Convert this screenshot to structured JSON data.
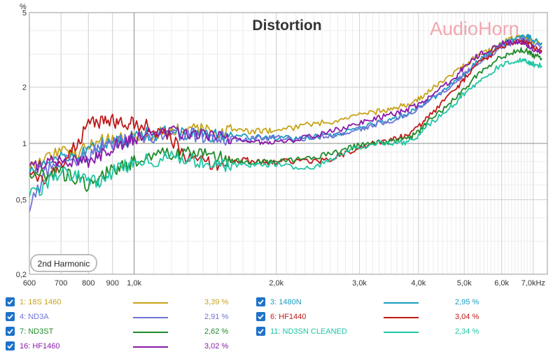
{
  "chart_data": {
    "type": "line",
    "title": "Distortion",
    "watermark": {
      "part1": "Audio",
      "part2": "Horn",
      "color1": "#f2a7ae",
      "color2": "#f2a7ae"
    },
    "badge": "2nd Harmonic",
    "y_unit": "%",
    "x_unit": "kHz",
    "x_scale": "log",
    "y_scale": "log",
    "xlim": [
      600,
      7500
    ],
    "ylim": [
      0.2,
      5
    ],
    "grid": true,
    "legend_placement": "bottom",
    "x_ticks": [
      {
        "v": 600,
        "label": "600"
      },
      {
        "v": 700,
        "label": "700"
      },
      {
        "v": 800,
        "label": "800"
      },
      {
        "v": 900,
        "label": "900"
      },
      {
        "v": 1000,
        "label": "1,0k"
      },
      {
        "v": 2000,
        "label": "2,0k"
      },
      {
        "v": 3000,
        "label": "3,0k"
      },
      {
        "v": 4000,
        "label": "4,0k"
      },
      {
        "v": 5000,
        "label": "5,0k"
      },
      {
        "v": 6000,
        "label": "6,0k"
      },
      {
        "v": 7000,
        "label": "7,0kHz"
      }
    ],
    "y_ticks": [
      {
        "v": 0.2,
        "label": "0,2"
      },
      {
        "v": 0.5,
        "label": "0,5"
      },
      {
        "v": 1,
        "label": "1"
      },
      {
        "v": 2,
        "label": "2"
      },
      {
        "v": 5,
        "label": "5"
      }
    ],
    "series": [
      {
        "name": "1: 18S 1460",
        "value_label": "3,39 %",
        "color": "#c8a317",
        "x": [
          600,
          650,
          700,
          750,
          800,
          850,
          900,
          950,
          1000,
          1100,
          1200,
          1300,
          1400,
          1500,
          1600,
          1700,
          1800,
          1900,
          2000,
          2200,
          2400,
          2600,
          2800,
          3000,
          3200,
          3400,
          3600,
          3800,
          4000,
          4200,
          4500,
          4800,
          5000,
          5300,
          5600,
          6000,
          6300,
          6600,
          6800,
          7000,
          7300
        ],
        "y": [
          0.74,
          0.85,
          0.92,
          0.88,
          0.95,
          1.02,
          1.06,
          1.05,
          1.07,
          1.12,
          1.16,
          1.18,
          1.17,
          1.16,
          1.18,
          1.17,
          1.16,
          1.17,
          1.17,
          1.22,
          1.28,
          1.3,
          1.35,
          1.42,
          1.46,
          1.5,
          1.55,
          1.62,
          1.72,
          1.9,
          2.15,
          2.4,
          2.6,
          2.9,
          3.1,
          3.4,
          3.65,
          3.75,
          3.7,
          3.55,
          3.45
        ]
      },
      {
        "name": "3: 1480N",
        "value_label": "2,95 %",
        "color": "#1a9dc0",
        "x": [
          600,
          650,
          700,
          750,
          800,
          850,
          900,
          950,
          1000,
          1100,
          1200,
          1300,
          1400,
          1500,
          1600,
          1700,
          1800,
          1900,
          2000,
          2200,
          2400,
          2600,
          2800,
          3000,
          3200,
          3400,
          3600,
          3800,
          4000,
          4200,
          4500,
          4800,
          5000,
          5300,
          5600,
          6000,
          6300,
          6600,
          6800,
          7000,
          7300
        ],
        "y": [
          0.72,
          0.8,
          0.86,
          0.85,
          0.9,
          0.98,
          1.02,
          1.04,
          1.08,
          1.13,
          1.14,
          1.13,
          1.11,
          1.1,
          1.1,
          1.09,
          1.08,
          1.07,
          1.08,
          1.06,
          1.09,
          1.1,
          1.15,
          1.22,
          1.27,
          1.3,
          1.38,
          1.45,
          1.55,
          1.7,
          1.9,
          2.15,
          2.35,
          2.7,
          3.0,
          3.35,
          3.6,
          3.8,
          3.75,
          3.6,
          3.45
        ]
      },
      {
        "name": "4: ND3A",
        "value_label": "2,91 %",
        "color": "#6e72d8",
        "x": [
          600,
          650,
          700,
          750,
          800,
          850,
          900,
          950,
          1000,
          1100,
          1200,
          1300,
          1400,
          1500,
          1600,
          1700,
          1800,
          1900,
          2000,
          2200,
          2400,
          2600,
          2800,
          3000,
          3200,
          3400,
          3600,
          3800,
          4000,
          4200,
          4500,
          4800,
          5000,
          5300,
          5600,
          6000,
          6300,
          6600,
          6800,
          7000,
          7300
        ],
        "y": [
          0.45,
          0.7,
          0.82,
          0.8,
          0.85,
          0.95,
          0.98,
          1.02,
          1.06,
          1.1,
          1.12,
          1.12,
          1.1,
          1.08,
          1.06,
          1.05,
          1.06,
          1.07,
          1.08,
          1.05,
          1.08,
          1.1,
          1.14,
          1.2,
          1.25,
          1.3,
          1.35,
          1.42,
          1.55,
          1.68,
          1.9,
          2.1,
          2.35,
          2.65,
          2.95,
          3.25,
          3.45,
          3.6,
          3.55,
          3.4,
          3.3
        ]
      },
      {
        "name": "6: HF1440",
        "value_label": "3,04 %",
        "color": "#c01818",
        "x": [
          600,
          650,
          700,
          750,
          800,
          850,
          900,
          950,
          1000,
          1100,
          1200,
          1300,
          1400,
          1500,
          1600,
          1700,
          1800,
          1900,
          2000,
          2200,
          2400,
          2600,
          2800,
          3000,
          3200,
          3400,
          3600,
          3800,
          4000,
          4200,
          4500,
          4800,
          5000,
          5300,
          5600,
          6000,
          6300,
          6600,
          6800,
          7000,
          7300
        ],
        "y": [
          0.72,
          0.62,
          0.78,
          0.95,
          1.28,
          1.3,
          1.32,
          1.3,
          1.28,
          1.2,
          1.05,
          0.82,
          0.8,
          0.76,
          0.8,
          0.82,
          0.8,
          0.79,
          0.8,
          0.81,
          0.8,
          0.82,
          0.88,
          0.95,
          1.0,
          1.02,
          1.06,
          1.12,
          1.22,
          1.4,
          1.65,
          1.95,
          2.2,
          2.6,
          2.9,
          3.25,
          3.45,
          3.5,
          3.45,
          3.3,
          3.15
        ]
      },
      {
        "name": "7: ND3ST",
        "value_label": "2,62 %",
        "color": "#1f8a2a",
        "x": [
          600,
          650,
          700,
          750,
          800,
          850,
          900,
          950,
          1000,
          1100,
          1200,
          1300,
          1400,
          1500,
          1600,
          1700,
          1800,
          1900,
          2000,
          2200,
          2400,
          2600,
          2800,
          3000,
          3200,
          3400,
          3600,
          3800,
          4000,
          4200,
          4500,
          4800,
          5000,
          5300,
          5600,
          6000,
          6300,
          6600,
          6800,
          7000,
          7300
        ],
        "y": [
          0.7,
          0.68,
          0.7,
          0.65,
          0.6,
          0.66,
          0.72,
          0.76,
          0.8,
          0.86,
          0.88,
          0.88,
          0.87,
          0.84,
          0.82,
          0.8,
          0.79,
          0.8,
          0.8,
          0.82,
          0.84,
          0.88,
          0.93,
          0.98,
          1.0,
          1.02,
          1.03,
          1.06,
          1.15,
          1.3,
          1.5,
          1.75,
          1.95,
          2.3,
          2.6,
          2.9,
          3.05,
          3.15,
          3.1,
          2.95,
          2.85
        ]
      },
      {
        "name": "11: ND3SN CLEANED",
        "value_label": "2,34 %",
        "color": "#1fc6a4",
        "x": [
          600,
          650,
          700,
          750,
          800,
          850,
          900,
          950,
          1000,
          1100,
          1200,
          1300,
          1400,
          1500,
          1600,
          1700,
          1800,
          1900,
          2000,
          2200,
          2400,
          2600,
          2800,
          3000,
          3200,
          3400,
          3600,
          3800,
          4000,
          4200,
          4500,
          4800,
          5000,
          5300,
          5600,
          6000,
          6300,
          6600,
          6800,
          7000,
          7300
        ],
        "y": [
          0.52,
          0.6,
          0.72,
          0.66,
          0.64,
          0.62,
          0.7,
          0.75,
          0.78,
          0.82,
          0.84,
          0.82,
          0.8,
          0.78,
          0.76,
          0.77,
          0.76,
          0.77,
          0.78,
          0.75,
          0.74,
          0.82,
          0.9,
          0.96,
          1.0,
          1.0,
          1.01,
          1.02,
          1.1,
          1.25,
          1.45,
          1.65,
          1.85,
          2.1,
          2.35,
          2.62,
          2.75,
          2.8,
          2.75,
          2.65,
          2.6
        ]
      },
      {
        "name": "16: HF1460",
        "value_label": "3,02 %",
        "color": "#8a1aa8",
        "x": [
          600,
          650,
          700,
          750,
          800,
          850,
          900,
          950,
          1000,
          1100,
          1200,
          1300,
          1400,
          1500,
          1600,
          1700,
          1800,
          1900,
          2000,
          2200,
          2400,
          2600,
          2800,
          3000,
          3200,
          3400,
          3600,
          3800,
          4000,
          4200,
          4500,
          4800,
          5000,
          5300,
          5600,
          6000,
          6300,
          6600,
          6800,
          7000,
          7300
        ],
        "y": [
          0.75,
          0.78,
          0.8,
          0.82,
          0.8,
          0.88,
          0.95,
          1.02,
          1.08,
          1.15,
          1.16,
          1.14,
          1.12,
          1.1,
          1.08,
          1.05,
          1.02,
          1.02,
          1.03,
          1.05,
          1.1,
          1.15,
          1.22,
          1.3,
          1.35,
          1.4,
          1.45,
          1.52,
          1.62,
          1.78,
          2.0,
          2.3,
          2.55,
          2.9,
          3.15,
          3.4,
          3.5,
          3.45,
          3.35,
          3.2,
          3.1
        ]
      }
    ]
  },
  "legend": [
    {
      "ref": 0,
      "col": 0,
      "row": 0
    },
    {
      "ref": 2,
      "col": 0,
      "row": 1
    },
    {
      "ref": 4,
      "col": 0,
      "row": 2
    },
    {
      "ref": 6,
      "col": 0,
      "row": 3
    },
    {
      "ref": 1,
      "col": 1,
      "row": 0
    },
    {
      "ref": 3,
      "col": 1,
      "row": 1
    },
    {
      "ref": 5,
      "col": 1,
      "row": 2
    }
  ]
}
